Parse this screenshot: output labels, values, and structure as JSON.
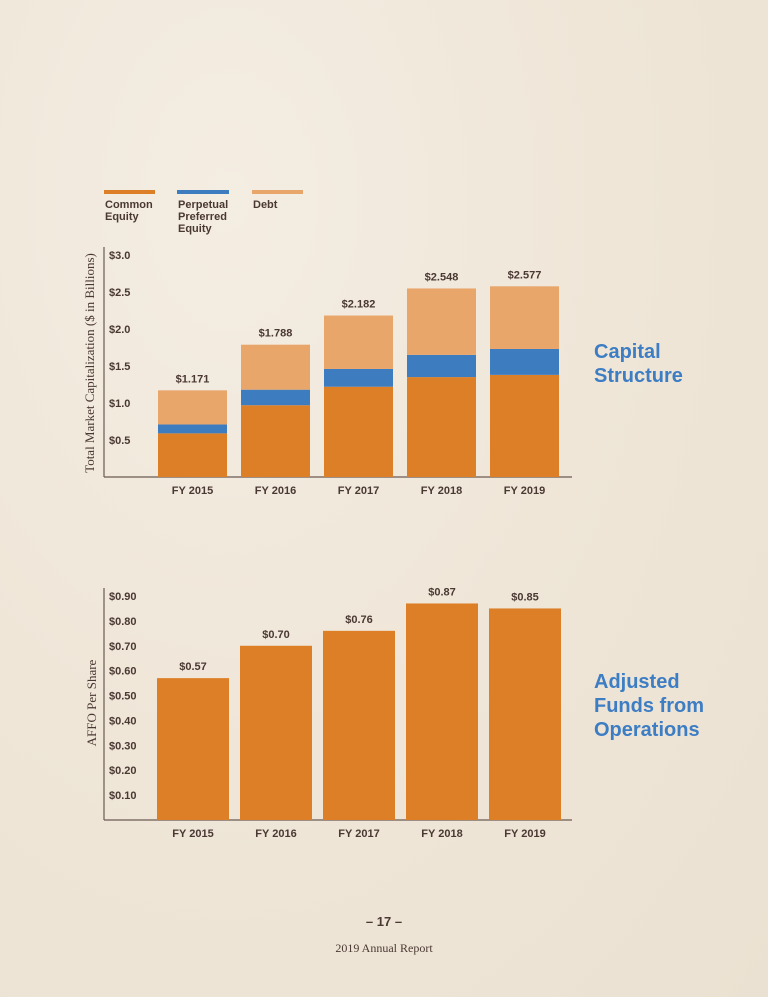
{
  "chart_data": [
    {
      "type": "bar",
      "stacked": true,
      "title": "Capital Structure",
      "ylabel": "Total Market Capitalization ($ in Billions)",
      "xlabel": "",
      "categories": [
        "FY 2015",
        "FY 2016",
        "FY 2017",
        "FY 2018",
        "FY 2019"
      ],
      "series": [
        {
          "name": "Common Equity",
          "color": "#DD7F27",
          "values": [
            0.59,
            0.97,
            1.22,
            1.35,
            1.38
          ]
        },
        {
          "name": "Perpetual Preferred Equity",
          "color": "#3E7CC0",
          "values": [
            0.12,
            0.21,
            0.24,
            0.3,
            0.35
          ]
        },
        {
          "name": "Debt",
          "color": "#E9A66B",
          "values": [
            0.461,
            0.608,
            0.722,
            0.898,
            0.847
          ]
        }
      ],
      "totals": [
        1.171,
        1.788,
        2.182,
        2.548,
        2.577
      ],
      "total_labels": [
        "$1.171",
        "$1.788",
        "$2.182",
        "$2.548",
        "$2.577"
      ],
      "yticks": [
        "$0.5",
        "$1.0",
        "$1.5",
        "$2.0",
        "$2.5",
        "$3.0"
      ],
      "ytick_values": [
        0.5,
        1.0,
        1.5,
        2.0,
        2.5,
        3.0
      ],
      "ylim": [
        0,
        3.0
      ],
      "legend_placement": "top-left",
      "legend": [
        "Common Equity",
        "Perpetual Preferred Equity",
        "Debt"
      ],
      "grid": false
    },
    {
      "type": "bar",
      "title": "Adjusted Funds from Operations",
      "ylabel": "AFFO Per Share",
      "xlabel": "",
      "categories": [
        "FY 2015",
        "FY 2016",
        "FY 2017",
        "FY 2018",
        "FY 2019"
      ],
      "values": [
        0.57,
        0.7,
        0.76,
        0.87,
        0.85
      ],
      "value_labels": [
        "$0.57",
        "$0.70",
        "$0.76",
        "$0.87",
        "$0.85"
      ],
      "color": "#DD7F27",
      "yticks": [
        "$0.10",
        "$0.20",
        "$0.30",
        "$0.40",
        "$0.50",
        "$0.60",
        "$0.70",
        "$0.80",
        "$0.90"
      ],
      "ytick_values": [
        0.1,
        0.2,
        0.3,
        0.4,
        0.5,
        0.6,
        0.7,
        0.8,
        0.9
      ],
      "ylim": [
        0,
        0.9
      ],
      "grid": false
    }
  ],
  "titles": {
    "capital_line1": "Capital",
    "capital_line2": "Structure",
    "affo_line1": "Adjusted",
    "affo_line2": "Funds from",
    "affo_line3": "Operations"
  },
  "legend_text": {
    "common_1": "Common",
    "common_2": "Equity",
    "pref_1": "Perpetual",
    "pref_2": "Preferred",
    "pref_3": "Equity",
    "debt_1": "Debt"
  },
  "footer": {
    "page_number": "– 17 –",
    "report": "2019 Annual Report"
  }
}
